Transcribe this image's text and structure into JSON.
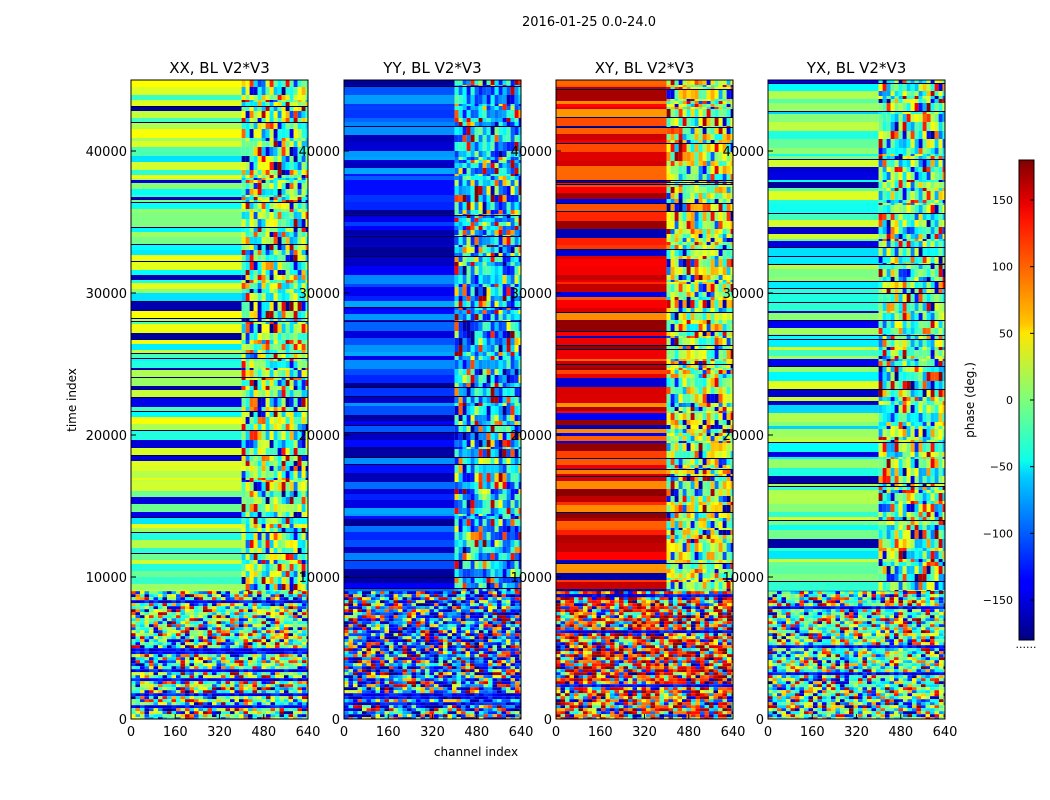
{
  "figure_title": "2016-01-25 0.0-24.0",
  "chart_data": {
    "type": "heatmap",
    "title": "2016-01-25 0.0-24.0",
    "xlabel": "channel index",
    "ylabel": "time index",
    "x_range": [
      0,
      640
    ],
    "y_range": [
      0,
      45000
    ],
    "x_ticks": [
      "0",
      "160",
      "320",
      "480",
      "640"
    ],
    "y_ticks": [
      "0",
      "10000",
      "20000",
      "30000",
      "40000"
    ],
    "x_tick_values": [
      0,
      160,
      320,
      480,
      640
    ],
    "y_tick_values": [
      0,
      10000,
      20000,
      30000,
      40000
    ],
    "colormap": "jet",
    "colorbar": {
      "label": "phase (deg.)",
      "range": [
        -180,
        180
      ],
      "tick_values": [
        -150,
        -100,
        -50,
        0,
        50,
        100,
        150
      ],
      "ticks": [
        "−150",
        "−100",
        "−50",
        "0",
        "50",
        "100",
        "150"
      ],
      "below_label": "......"
    },
    "panels": [
      {
        "title": "XX, BL V2*V3",
        "mean_phase_deg": -5,
        "high_channel_phase_deg": -5
      },
      {
        "title": "YY, BL V2*V3",
        "mean_phase_deg": -125,
        "high_channel_phase_deg": -70
      },
      {
        "title": "XY, BL V2*V3",
        "mean_phase_deg": 130,
        "high_channel_phase_deg": 20
      },
      {
        "title": "YX, BL V2*V3",
        "mean_phase_deg": -15,
        "high_channel_phase_deg": -15
      }
    ],
    "structure": {
      "noisy_below_time_index": 9000,
      "high_channel_region_start": 400
    }
  }
}
